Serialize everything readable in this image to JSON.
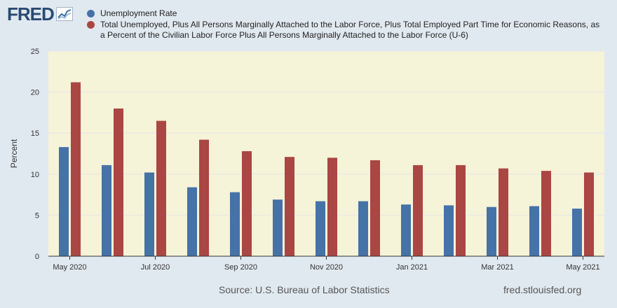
{
  "header": {
    "logo_text": "FRED",
    "logo_icon": "line-graph-icon"
  },
  "legend": [
    {
      "label": "Unemployment Rate",
      "color": "#4572a7"
    },
    {
      "label": "Total Unemployed, Plus All Persons Marginally Attached to the Labor Force, Plus Total Employed Part Time for Economic Reasons, as a Percent of the Civilian Labor Force Plus All Persons Marginally Attached to the Labor Force (U-6)",
      "color": "#aa4643"
    }
  ],
  "chart_data": {
    "type": "bar",
    "ylabel": "Percent",
    "ylim": [
      0,
      25
    ],
    "yticks": [
      0,
      5,
      10,
      15,
      20,
      25
    ],
    "grid": true,
    "background": "#f5f3d8",
    "categories": [
      "May 2020",
      "Jun 2020",
      "Jul 2020",
      "Aug 2020",
      "Sep 2020",
      "Oct 2020",
      "Nov 2020",
      "Dec 2020",
      "Jan 2021",
      "Feb 2021",
      "Mar 2021",
      "Apr 2021",
      "May 2021"
    ],
    "xtick_labels": [
      "May 2020",
      "",
      "Jul 2020",
      "",
      "Sep 2020",
      "",
      "Nov 2020",
      "",
      "Jan 2021",
      "",
      "Mar 2021",
      "",
      "May 2021"
    ],
    "series": [
      {
        "name": "Unemployment Rate",
        "color": "#4572a7",
        "values": [
          13.3,
          11.1,
          10.2,
          8.4,
          7.8,
          6.9,
          6.7,
          6.7,
          6.3,
          6.2,
          6.0,
          6.1,
          5.8
        ]
      },
      {
        "name": "Total Unemployed, Plus All Persons Marginally Attached to the Labor Force, Plus Total Employed Part Time for Economic Reasons, as a Percent of the Civilian Labor Force Plus All Persons Marginally Attached to the Labor Force (U-6)",
        "color": "#aa4643",
        "values": [
          21.2,
          18.0,
          16.5,
          14.2,
          12.8,
          12.1,
          12.0,
          11.7,
          11.1,
          11.1,
          10.7,
          10.4,
          10.2
        ]
      }
    ]
  },
  "footer": {
    "source": "Source: U.S. Bureau of Labor Statistics",
    "url": "fred.stlouisfed.org"
  }
}
